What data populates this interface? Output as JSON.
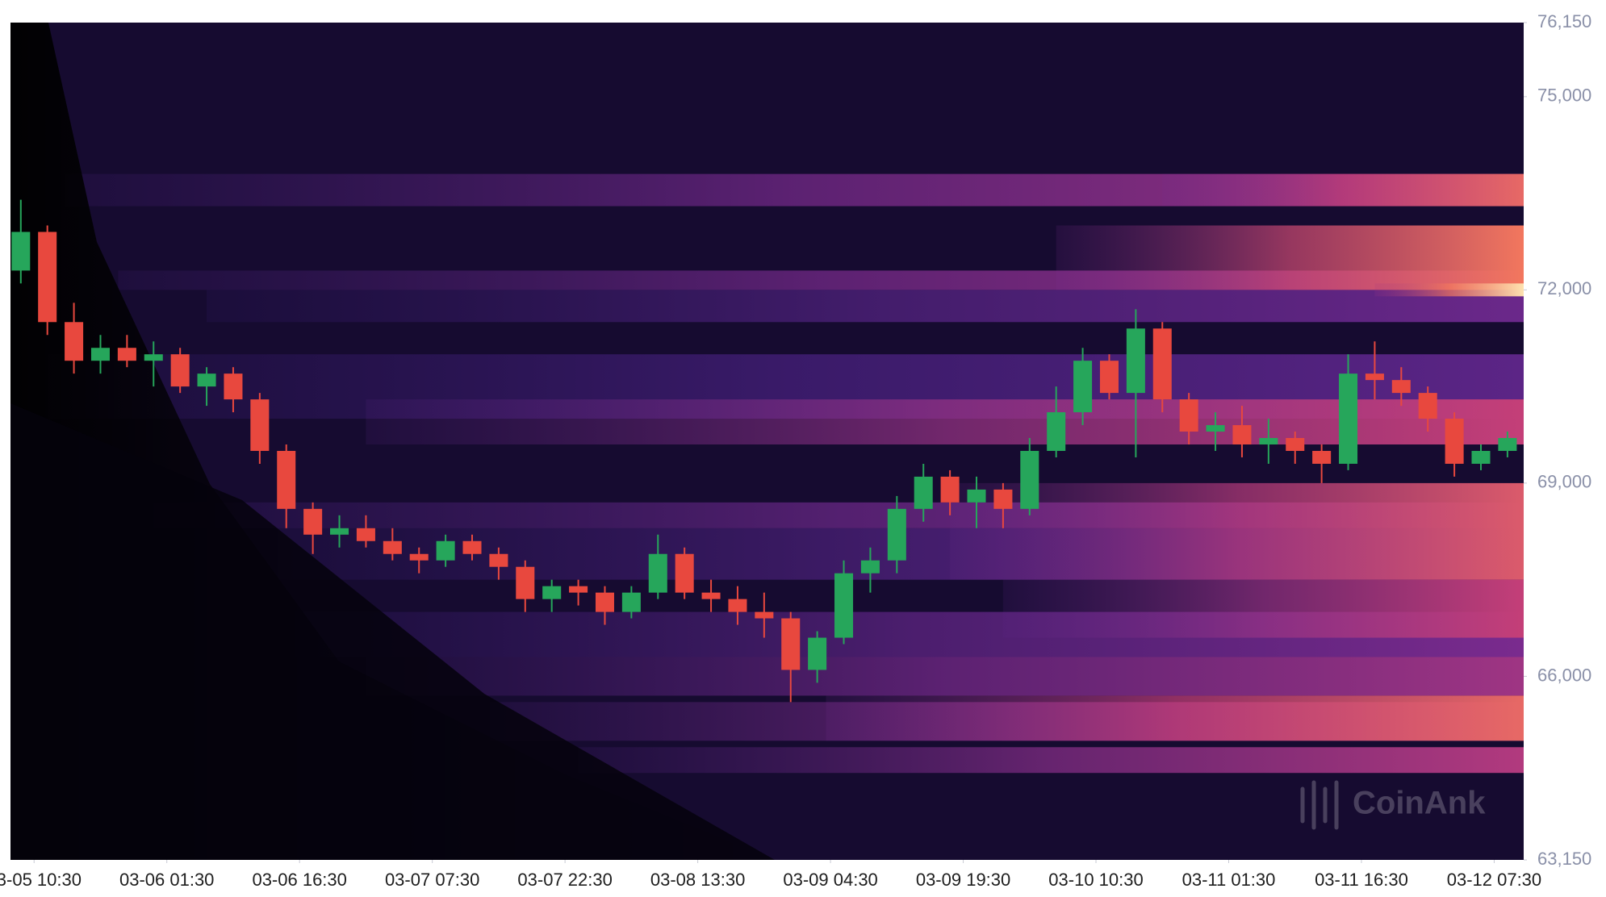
{
  "chart_data": {
    "type": "candlestick-heatmap",
    "watermark": "CoinAnk",
    "xlim": [
      "03-05 07:50",
      "03-12 10:50"
    ],
    "xticks": [
      "03-05 10:30",
      "03-06 01:30",
      "03-06 16:30",
      "03-07 07:30",
      "03-07 22:30",
      "03-08 13:30",
      "03-09 04:30",
      "03-09 19:30",
      "03-10 10:30",
      "03-11 01:30",
      "03-11 16:30",
      "03-12 07:30"
    ],
    "ylim": [
      63150,
      76150
    ],
    "yticks": [
      {
        "value": 63150,
        "label": "63,150"
      },
      {
        "value": 66000,
        "label": "66,000"
      },
      {
        "value": 69000,
        "label": "69,000"
      },
      {
        "value": 72000,
        "label": "72,000"
      },
      {
        "value": 75000,
        "label": "75,000"
      },
      {
        "value": 76150,
        "label": "76,150"
      }
    ],
    "up_color": "#26a65b",
    "down_color": "#e8483e",
    "background_color": "#160b30",
    "colorscale": [
      "#1c0f45",
      "#3d1f7e",
      "#7a2b8e",
      "#c43f78",
      "#f2775e",
      "#fde2b0"
    ],
    "heatmap": [
      {
        "low": 70000,
        "high": 71000,
        "start": "03-05 12:00",
        "intensity": 0.3
      },
      {
        "low": 73300,
        "high": 73800,
        "start": "03-05 14:00",
        "intensity": 0.5
      },
      {
        "low": 72000,
        "high": 72300,
        "start": "03-05 20:00",
        "intensity": 0.5
      },
      {
        "low": 71500,
        "high": 72000,
        "start": "03-06 06:00",
        "intensity": 0.35
      },
      {
        "low": 68300,
        "high": 68700,
        "start": "03-06 00:00",
        "intensity": 0.45
      },
      {
        "low": 67500,
        "high": 68300,
        "start": "03-06 14:00",
        "intensity": 0.35
      },
      {
        "low": 66300,
        "high": 67000,
        "start": "03-06 16:00",
        "intensity": 0.4
      },
      {
        "low": 69600,
        "high": 70300,
        "start": "03-07 00:00",
        "intensity": 0.6
      },
      {
        "low": 65700,
        "high": 66300,
        "start": "03-07 00:00",
        "intensity": 0.5
      },
      {
        "low": 65000,
        "high": 65600,
        "start": "03-07 14:00",
        "intensity": 0.55
      },
      {
        "low": 64500,
        "high": 64900,
        "start": "03-08 00:00",
        "intensity": 0.55
      },
      {
        "low": 65000,
        "high": 65700,
        "start": "03-09 04:00",
        "intensity": 0.75
      },
      {
        "low": 67500,
        "high": 69000,
        "start": "03-09 18:00",
        "intensity": 0.7
      },
      {
        "low": 66600,
        "high": 67500,
        "start": "03-10 00:00",
        "intensity": 0.6
      },
      {
        "low": 72000,
        "high": 73000,
        "start": "03-10 06:00",
        "intensity": 0.8
      },
      {
        "low": 73300,
        "high": 73800,
        "start": "03-10 18:00",
        "intensity": 0.75
      },
      {
        "low": 71900,
        "high": 72100,
        "start": "03-11 18:00",
        "intensity": 1
      }
    ],
    "x": [
      "03-05 09:00",
      "03-05 12:00",
      "03-05 15:00",
      "03-05 18:00",
      "03-05 21:00",
      "03-06 00:00",
      "03-06 03:00",
      "03-06 06:00",
      "03-06 09:00",
      "03-06 12:00",
      "03-06 15:00",
      "03-06 18:00",
      "03-06 21:00",
      "03-07 00:00",
      "03-07 03:00",
      "03-07 06:00",
      "03-07 09:00",
      "03-07 12:00",
      "03-07 15:00",
      "03-07 18:00",
      "03-07 21:00",
      "03-08 00:00",
      "03-08 03:00",
      "03-08 06:00",
      "03-08 09:00",
      "03-08 12:00",
      "03-08 15:00",
      "03-08 18:00",
      "03-08 21:00",
      "03-09 00:00",
      "03-09 03:00",
      "03-09 06:00",
      "03-09 09:00",
      "03-09 12:00",
      "03-09 15:00",
      "03-09 18:00",
      "03-09 21:00",
      "03-10 00:00",
      "03-10 03:00",
      "03-10 06:00",
      "03-10 09:00",
      "03-10 12:00",
      "03-10 15:00",
      "03-10 18:00",
      "03-10 21:00",
      "03-11 00:00",
      "03-11 03:00",
      "03-11 06:00",
      "03-11 09:00",
      "03-11 12:00",
      "03-11 15:00",
      "03-11 18:00",
      "03-11 21:00",
      "03-12 00:00",
      "03-12 03:00",
      "03-12 06:00",
      "03-12 09:00"
    ],
    "open": [
      72300,
      72900,
      71500,
      70900,
      71100,
      70900,
      71000,
      70500,
      70700,
      70300,
      69500,
      68600,
      68200,
      68300,
      68100,
      67900,
      67800,
      68100,
      67900,
      67700,
      67200,
      67400,
      67300,
      67000,
      67300,
      67900,
      67300,
      67200,
      67000,
      66900,
      66100,
      66600,
      67600,
      67800,
      68600,
      69100,
      68700,
      68900,
      68600,
      69500,
      70100,
      70900,
      70400,
      71400,
      70300,
      69800,
      69900,
      69600,
      69700,
      69500,
      69300,
      70700,
      70600,
      70400,
      70000,
      69300,
      69500
    ],
    "high": [
      73400,
      73000,
      71800,
      71300,
      71300,
      71200,
      71100,
      70800,
      70800,
      70400,
      69600,
      68700,
      68500,
      68500,
      68300,
      68000,
      68200,
      68200,
      68000,
      67800,
      67500,
      67500,
      67400,
      67400,
      68200,
      68000,
      67500,
      67400,
      67300,
      67000,
      66700,
      67800,
      68000,
      68800,
      69300,
      69200,
      69100,
      69000,
      69700,
      70500,
      71100,
      71000,
      71700,
      71500,
      70400,
      70100,
      70200,
      70000,
      69800,
      69600,
      71000,
      71200,
      70800,
      70500,
      70100,
      69600,
      69800
    ],
    "low": [
      72100,
      71300,
      70700,
      70700,
      70800,
      70500,
      70400,
      70200,
      70100,
      69300,
      68300,
      67900,
      68000,
      68000,
      67800,
      67600,
      67700,
      67800,
      67500,
      67000,
      67000,
      67100,
      66800,
      66900,
      67200,
      67200,
      67000,
      66800,
      66600,
      65600,
      65900,
      66500,
      67300,
      67600,
      68400,
      68500,
      68300,
      68300,
      68500,
      69400,
      69900,
      70300,
      69400,
      70100,
      69600,
      69500,
      69400,
      69300,
      69300,
      69000,
      69200,
      70300,
      70200,
      69800,
      69100,
      69200,
      69400
    ],
    "close": [
      72900,
      71500,
      70900,
      71100,
      70900,
      71000,
      70500,
      70700,
      70300,
      69500,
      68600,
      68200,
      68300,
      68100,
      67900,
      67800,
      68100,
      67900,
      67700,
      67200,
      67400,
      67300,
      67000,
      67300,
      67900,
      67300,
      67200,
      67000,
      66900,
      66100,
      66600,
      67600,
      67800,
      68600,
      69100,
      68700,
      68900,
      68600,
      69500,
      70100,
      70900,
      70400,
      71400,
      70300,
      69800,
      69900,
      69600,
      69700,
      69500,
      69300,
      70700,
      70600,
      70400,
      70000,
      69300,
      69500,
      69700
    ]
  }
}
